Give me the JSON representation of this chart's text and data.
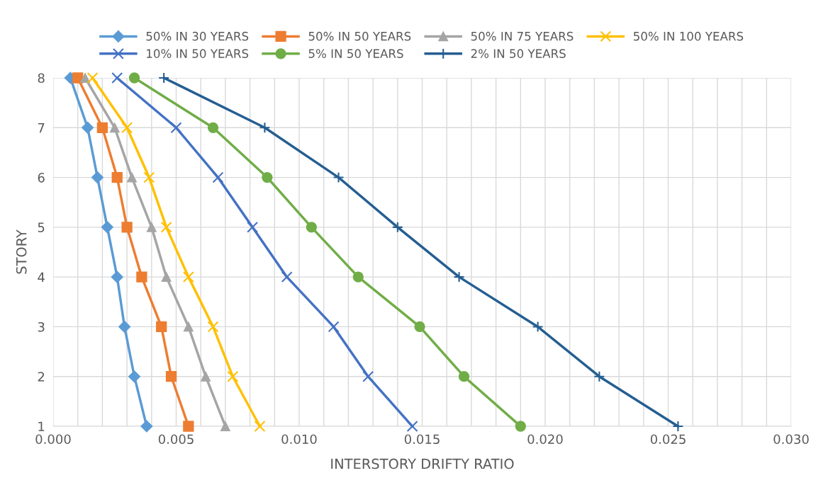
{
  "chart_data": {
    "type": "line",
    "xlabel": "INTERSTORY DRIFTY RATIO",
    "ylabel": "STORY",
    "categories": [
      "8",
      "7",
      "6",
      "5",
      "4",
      "3",
      "2",
      "1"
    ],
    "orientation": "horizontal",
    "xlim": [
      0,
      0.03
    ],
    "xticks": [
      {
        "value": 0,
        "label": "0.000"
      },
      {
        "value": 0.001,
        "label": null
      },
      {
        "value": 0.002,
        "label": null
      },
      {
        "value": 0.003,
        "label": null
      },
      {
        "value": 0.004,
        "label": null
      },
      {
        "value": 0.005,
        "label": "0.005"
      },
      {
        "value": 0.006,
        "label": null
      },
      {
        "value": 0.007,
        "label": null
      },
      {
        "value": 0.008,
        "label": null
      },
      {
        "value": 0.009,
        "label": null
      },
      {
        "value": 0.01,
        "label": "0.010"
      },
      {
        "value": 0.011,
        "label": null
      },
      {
        "value": 0.012,
        "label": null
      },
      {
        "value": 0.013,
        "label": null
      },
      {
        "value": 0.014,
        "label": null
      },
      {
        "value": 0.015,
        "label": "0.015"
      },
      {
        "value": 0.016,
        "label": null
      },
      {
        "value": 0.017,
        "label": null
      },
      {
        "value": 0.018,
        "label": null
      },
      {
        "value": 0.019,
        "label": null
      },
      {
        "value": 0.02,
        "label": "0.020"
      },
      {
        "value": 0.021,
        "label": null
      },
      {
        "value": 0.022,
        "label": null
      },
      {
        "value": 0.023,
        "label": null
      },
      {
        "value": 0.024,
        "label": null
      },
      {
        "value": 0.025,
        "label": "0.025"
      },
      {
        "value": 0.026,
        "label": null
      },
      {
        "value": 0.027,
        "label": null
      },
      {
        "value": 0.028,
        "label": null
      },
      {
        "value": 0.029,
        "label": null
      },
      {
        "value": 0.03,
        "label": "0.030"
      }
    ],
    "grid": true,
    "legend": "top",
    "line_style": "solid",
    "series": [
      {
        "name": "50% IN 30 YEARS",
        "color": "#5b9bd5",
        "marker": "diamond",
        "values": [
          0.0007,
          0.0014,
          0.0018,
          0.0022,
          0.0026,
          0.0029,
          0.0033,
          0.0038
        ]
      },
      {
        "name": "50% IN 50 YEARS",
        "color": "#ed7d31",
        "marker": "square",
        "values": [
          0.001,
          0.002,
          0.0026,
          0.003,
          0.0036,
          0.0044,
          0.0048,
          0.0055
        ]
      },
      {
        "name": "50% IN 75 YEARS",
        "color": "#a5a5a5",
        "marker": "triangle",
        "values": [
          0.0013,
          0.0025,
          0.0032,
          0.004,
          0.0046,
          0.0055,
          0.0062,
          0.007
        ]
      },
      {
        "name": "50% IN 100 YEARS",
        "color": "#ffc000",
        "marker": "cross",
        "values": [
          0.0016,
          0.003,
          0.0039,
          0.0046,
          0.0055,
          0.0065,
          0.0073,
          0.0084
        ]
      },
      {
        "name": "10% IN 50 YEARS",
        "color": "#4472c4",
        "marker": "cross",
        "values": [
          0.0026,
          0.005,
          0.0067,
          0.0081,
          0.0095,
          0.0114,
          0.0128,
          0.0146
        ]
      },
      {
        "name": "5% IN 50 YEARS",
        "color": "#70ad47",
        "marker": "circle",
        "values": [
          0.0033,
          0.0065,
          0.0087,
          0.0105,
          0.0124,
          0.0149,
          0.0167,
          0.019
        ]
      },
      {
        "name": "2% IN 50 YEARS",
        "color": "#255e91",
        "marker": "plus",
        "values": [
          0.0045,
          0.0086,
          0.0116,
          0.014,
          0.0165,
          0.0197,
          0.0222,
          0.0254
        ]
      }
    ]
  }
}
